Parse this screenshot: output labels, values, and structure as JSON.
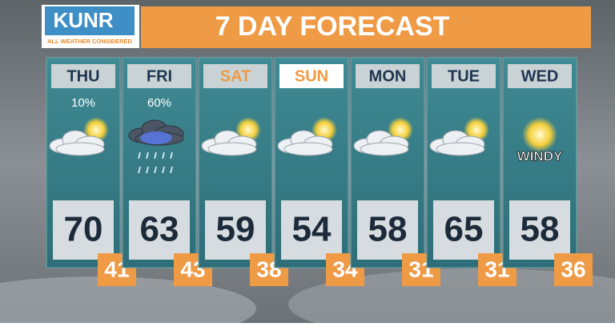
{
  "logo": {
    "name": "KUNR",
    "tagline": "ALL WEATHER CONSIDERED"
  },
  "header": {
    "title": "7 DAY FORECAST"
  },
  "days": [
    {
      "name": "THU",
      "precip": "10%",
      "high": "70",
      "low": "41"
    },
    {
      "name": "FRI",
      "precip": "60%",
      "high": "63",
      "low": "43"
    },
    {
      "name": "SAT",
      "high": "59",
      "low": "38"
    },
    {
      "name": "SUN",
      "high": "54",
      "low": "34"
    },
    {
      "name": "MON",
      "high": "58",
      "low": "31"
    },
    {
      "name": "TUE",
      "high": "65",
      "low": "31"
    },
    {
      "name": "WED",
      "note": "WINDY",
      "high": "58",
      "low": "36"
    }
  ]
}
